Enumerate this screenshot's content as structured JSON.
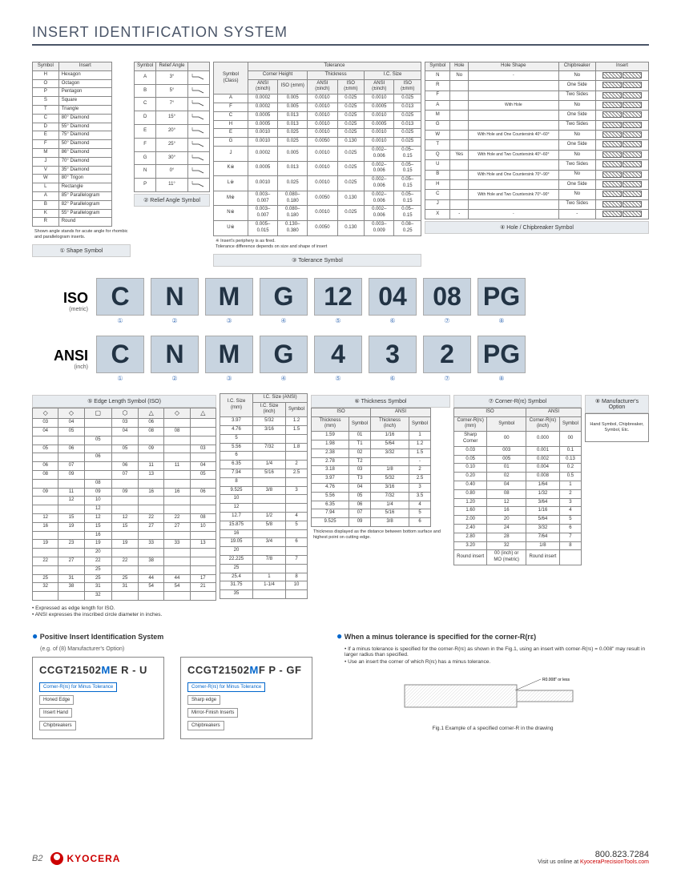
{
  "title": "INSERT IDENTIFICATION SYSTEM",
  "shape": {
    "header": [
      "Symbol",
      "Insert"
    ],
    "rows": [
      [
        "H",
        "Hexagon"
      ],
      [
        "O",
        "Octagon"
      ],
      [
        "P",
        "Pentagon"
      ],
      [
        "S",
        "Square"
      ],
      [
        "T",
        "Triangle"
      ],
      [
        "C",
        "80° Diamond"
      ],
      [
        "D",
        "55° Diamond"
      ],
      [
        "E",
        "75° Diamond"
      ],
      [
        "F",
        "50° Diamond"
      ],
      [
        "M",
        "86° Diamond"
      ],
      [
        "J",
        "70° Diamond"
      ],
      [
        "V",
        "35° Diamond"
      ],
      [
        "W",
        "80° Trigon"
      ],
      [
        "L",
        "Rectangle"
      ],
      [
        "A",
        "85° Parallelogram"
      ],
      [
        "B",
        "82° Parallelogram"
      ],
      [
        "K",
        "55° Parallelogram"
      ],
      [
        "R",
        "Round"
      ]
    ],
    "note": "Shown angle stands for acute angle for rhombic and parallelogram inserts.",
    "label": "① Shape Symbol"
  },
  "relief": {
    "header": [
      "Symbol",
      "Relief Angle",
      ""
    ],
    "rows": [
      [
        "A",
        "3°"
      ],
      [
        "B",
        "5°"
      ],
      [
        "C",
        "7°"
      ],
      [
        "D",
        "15°"
      ],
      [
        "E",
        "20°"
      ],
      [
        "F",
        "25°"
      ],
      [
        "G",
        "30°"
      ],
      [
        "N",
        "0°"
      ],
      [
        "P",
        "11°"
      ]
    ],
    "label": "② Relief Angle Symbol"
  },
  "tolerance": {
    "header1": [
      "Symbol (Class)",
      "Tolerance"
    ],
    "header2": [
      "Corner Height",
      "Thickness",
      "I.C. Size"
    ],
    "header3": [
      "ANSI (±inch)",
      "ISO (±mm)",
      "ANSI (±inch)",
      "ISO (±mm)",
      "ANSI (±inch)",
      "ISO (±mm)"
    ],
    "rows": [
      [
        "A",
        "0.0002",
        "0.005",
        "0.0010",
        "0.025",
        "0.0010",
        "0.025"
      ],
      [
        "F",
        "0.0002",
        "0.005",
        "0.0010",
        "0.025",
        "0.0005",
        "0.013"
      ],
      [
        "C",
        "0.0005",
        "0.013",
        "0.0010",
        "0.025",
        "0.0010",
        "0.025"
      ],
      [
        "H",
        "0.0005",
        "0.013",
        "0.0010",
        "0.025",
        "0.0005",
        "0.013"
      ],
      [
        "E",
        "0.0010",
        "0.025",
        "0.0010",
        "0.025",
        "0.0010",
        "0.025"
      ],
      [
        "G",
        "0.0010",
        "0.025",
        "0.0050",
        "0.130",
        "0.0010",
        "0.025"
      ],
      [
        "J",
        "0.0002",
        "0.005",
        "0.0010",
        "0.025",
        "0.002–0.006",
        "0.05–0.15"
      ],
      [
        "K※",
        "0.0005",
        "0.013",
        "0.0010",
        "0.025",
        "0.002–0.006",
        "0.05–0.15"
      ],
      [
        "L※",
        "0.0010",
        "0.025",
        "0.0010",
        "0.025",
        "0.002–0.006",
        "0.05–0.15"
      ],
      [
        "M※",
        "0.003–0.007",
        "0.080–0.180",
        "0.0050",
        "0.130",
        "0.002–0.006",
        "0.05–0.15"
      ],
      [
        "N※",
        "0.003–0.007",
        "0.080–0.180",
        "0.0010",
        "0.025",
        "0.002–0.006",
        "0.05–0.15"
      ],
      [
        "U※",
        "0.005–0.015",
        "0.130–0.380",
        "0.0050",
        "0.130",
        "0.003–0.009",
        "0.08–0.25"
      ]
    ],
    "note": "※ Insert's periphery is as fired.\nTolerance difference depends on size and shape of insert",
    "label": "③ Tolerance Symbol"
  },
  "hole": {
    "header": [
      "Symbol",
      "Hole",
      "Hole Shape",
      "Chipbreaker",
      "Insert"
    ],
    "rows": [
      [
        "N",
        "No",
        "-",
        "No"
      ],
      [
        "R",
        "",
        "",
        "One Side"
      ],
      [
        "F",
        "",
        "",
        "Two Sides"
      ],
      [
        "A",
        "",
        "With Hole",
        "No"
      ],
      [
        "M",
        "",
        "",
        "One Side"
      ],
      [
        "G",
        "",
        "",
        "Two Sides"
      ],
      [
        "W",
        "",
        "With Hole and One Countersink 40°–60°",
        "No"
      ],
      [
        "T",
        "",
        "",
        "One Side"
      ],
      [
        "Q",
        "Yes",
        "With Hole and Two Countersink 40°–60°",
        "No"
      ],
      [
        "U",
        "",
        "",
        "Two Sides"
      ],
      [
        "B",
        "",
        "With Hole and One Countersink 70°–90°",
        "No"
      ],
      [
        "H",
        "",
        "",
        "One Side"
      ],
      [
        "C",
        "",
        "With Hole and Two Countersink 70°–90°",
        "No"
      ],
      [
        "J",
        "",
        "",
        "Two Sides"
      ],
      [
        "X",
        "-",
        "-",
        "-",
        "-"
      ]
    ],
    "label": "④ Hole / Chipbreaker Symbol"
  },
  "iso_row": {
    "label": "ISO",
    "sub": "(metric)",
    "codes": [
      "C",
      "N",
      "M",
      "G",
      "12",
      "04",
      "08",
      "PG"
    ],
    "nums": [
      "①",
      "②",
      "③",
      "④",
      "⑤",
      "⑥",
      "⑦",
      "⑧"
    ]
  },
  "ansi_row": {
    "label": "ANSI",
    "sub": "(inch)",
    "codes": [
      "C",
      "N",
      "M",
      "G",
      "4",
      "3",
      "2",
      "PG"
    ],
    "nums": [
      "①",
      "②",
      "③",
      "④",
      "⑤",
      "⑥",
      "⑦",
      "⑧"
    ]
  },
  "edge": {
    "label": "⑤ Edge Length Symbol (ISO)",
    "rows": [
      [
        "03",
        "04",
        "",
        "03",
        "06",
        "",
        ""
      ],
      [
        "04",
        "05",
        "",
        "04",
        "08",
        "08",
        ""
      ],
      [
        "",
        "",
        "05",
        "",
        "",
        "",
        ""
      ],
      [
        "05",
        "06",
        "",
        "05",
        "09",
        "",
        "03"
      ],
      [
        "",
        "",
        "06",
        "",
        "",
        "",
        ""
      ],
      [
        "06",
        "07",
        "",
        "06",
        "11",
        "11",
        "04"
      ],
      [
        "08",
        "09",
        "",
        "07",
        "13",
        "",
        "05"
      ],
      [
        "",
        "",
        "08",
        "",
        "",
        "",
        ""
      ],
      [
        "09",
        "11",
        "09",
        "09",
        "16",
        "16",
        "06"
      ],
      [
        "",
        "12",
        "10",
        "",
        "",
        "",
        ""
      ],
      [
        "",
        "",
        "12",
        "",
        "",
        "",
        ""
      ],
      [
        "12",
        "15",
        "12",
        "12",
        "22",
        "22",
        "08"
      ],
      [
        "16",
        "19",
        "15",
        "15",
        "27",
        "27",
        "10"
      ],
      [
        "",
        "",
        "16",
        "",
        "",
        "",
        ""
      ],
      [
        "19",
        "23",
        "19",
        "19",
        "33",
        "33",
        "13"
      ],
      [
        "",
        "",
        "20",
        "",
        "",
        "",
        ""
      ],
      [
        "22",
        "27",
        "22",
        "22",
        "38",
        "",
        ""
      ],
      [
        "",
        "",
        "25",
        "",
        "",
        "",
        ""
      ],
      [
        "25",
        "31",
        "25",
        "25",
        "44",
        "44",
        "17"
      ],
      [
        "32",
        "38",
        "31",
        "31",
        "54",
        "54",
        "21"
      ],
      [
        "",
        "",
        "32",
        "",
        "",
        "",
        ""
      ]
    ]
  },
  "icsize": {
    "label_mm": "I.C. Size (mm)",
    "label_ansi": "I.C. Size (ANSI)",
    "header": [
      "I.C. Size (inch)",
      "Symbol"
    ],
    "rows": [
      [
        "3.97",
        "5/32",
        "1.2"
      ],
      [
        "4.76",
        "3/16",
        "1.5"
      ],
      [
        "5",
        "",
        ""
      ],
      [
        "5.56",
        "7/32",
        "1.8"
      ],
      [
        "6",
        "",
        ""
      ],
      [
        "6.35",
        "1/4",
        "2"
      ],
      [
        "7.94",
        "5/16",
        "2.5"
      ],
      [
        "8",
        "",
        ""
      ],
      [
        "9.525",
        "3/8",
        "3"
      ],
      [
        "10",
        "",
        ""
      ],
      [
        "12",
        "",
        ""
      ],
      [
        "12.7",
        "1/2",
        "4"
      ],
      [
        "15.875",
        "5/8",
        "5"
      ],
      [
        "16",
        "",
        ""
      ],
      [
        "19.05",
        "3/4",
        "6"
      ],
      [
        "20",
        "",
        ""
      ],
      [
        "22.225",
        "7/8",
        "7"
      ],
      [
        "25",
        "",
        ""
      ],
      [
        "25.4",
        "1",
        "8"
      ],
      [
        "31.75",
        "1-1/4",
        "10"
      ],
      [
        "35",
        "",
        ""
      ]
    ]
  },
  "thickness": {
    "label": "⑥ Thickness Symbol",
    "header": [
      "ISO",
      "ANSI"
    ],
    "subheader": [
      "Thickness (mm)",
      "Symbol",
      "Thickness (inch)",
      "Symbol"
    ],
    "rows": [
      [
        "1.59",
        "01",
        "1/16",
        "1"
      ],
      [
        "1.98",
        "T1",
        "5/64",
        "1.2"
      ],
      [
        "2.38",
        "02",
        "3/32",
        "1.5"
      ],
      [
        "2.78",
        "T2",
        "",
        "-"
      ],
      [
        "3.18",
        "03",
        "1/8",
        "2"
      ],
      [
        "3.97",
        "T3",
        "5/32",
        "2.5"
      ],
      [
        "4.76",
        "04",
        "3/16",
        "3"
      ],
      [
        "5.56",
        "05",
        "7/32",
        "3.5"
      ],
      [
        "6.35",
        "06",
        "1/4",
        "4"
      ],
      [
        "7.94",
        "07",
        "5/16",
        "5"
      ],
      [
        "9.525",
        "09",
        "3/8",
        "6"
      ]
    ],
    "note": "Thickness displayed as the distance between bottom surface and highest point on cutting edge."
  },
  "cornerr": {
    "label": "⑦ Corner-R(rε) Symbol",
    "header": [
      "ISO",
      "ANSI"
    ],
    "subheader": [
      "Corner-R(rε) (mm)",
      "Symbol",
      "Corner-R(rε) (inch)",
      "Symbol"
    ],
    "rows": [
      [
        "Sharp Corner",
        "00",
        "0.000",
        "00"
      ],
      [
        "0.03",
        "003",
        "0.001",
        "0.1"
      ],
      [
        "0.05",
        "005",
        "0.002",
        "0.13"
      ],
      [
        "0.10",
        "01",
        "0.004",
        "0.2"
      ],
      [
        "0.20",
        "02",
        "0.008",
        "0.5"
      ],
      [
        "0.40",
        "04",
        "1/64",
        "1"
      ],
      [
        "0.80",
        "08",
        "1/32",
        "2"
      ],
      [
        "1.20",
        "12",
        "3/64",
        "3"
      ],
      [
        "1.60",
        "16",
        "1/16",
        "4"
      ],
      [
        "2.00",
        "20",
        "5/64",
        "5"
      ],
      [
        "2.40",
        "24",
        "3/32",
        "6"
      ],
      [
        "2.80",
        "28",
        "7/64",
        "7"
      ],
      [
        "3.20",
        "32",
        "1/8",
        "8"
      ],
      [
        "Round insert",
        "00 (inch) or MO (metric)",
        "Round insert",
        ""
      ]
    ]
  },
  "mfg": {
    "label": "⑧ Manufacturer's Option",
    "text": "Hand Symbol, Chipbreaker, Symbol, Etc."
  },
  "notes": [
    "• Expressed as edge length for ISO.",
    "• ANSI expresses the inscribed circle diameter in inches."
  ],
  "positive": {
    "title": "Positive Insert Identification System",
    "sub": "(e.g. of (8) Manufacturer's Option)",
    "ex1": {
      "code": "CCGT21502",
      "m": "M",
      "rest": "E R - U",
      "labels": [
        "Corner-R(rε) for Minus Tolerance",
        "Honed Edge",
        "Insert Hand",
        "Chipbreakers"
      ]
    },
    "ex2": {
      "code": "CCGT21502",
      "m": "M",
      "rest": "F P - GF",
      "labels": [
        "Corner-R(rε) for Minus Tolerance",
        "Sharp edge",
        "Mirror-Finish Inserts",
        "Chipbreakers"
      ]
    }
  },
  "minus": {
    "title": "When a minus tolerance is specified for the corner-R(rε)",
    "lines": [
      "• If a minus tolerance is specified for the corner-R(rε) as shown in the Fig.1, using an insert with corner-R(rε) = 0.008\" may result in larger radius than specified.",
      "• Use an insert the corner of which R(rε) has a minus tolerance."
    ],
    "fig_label": "R0.008\" or less",
    "fig_caption": "Fig.1 Example of a specified corner-R in the drawing"
  },
  "footer": {
    "page": "B2",
    "brand": "KYOCERA",
    "phone": "800.823.7284",
    "visit": "Visit us online at ",
    "url": "KyoceraPrecisionTools.com"
  }
}
